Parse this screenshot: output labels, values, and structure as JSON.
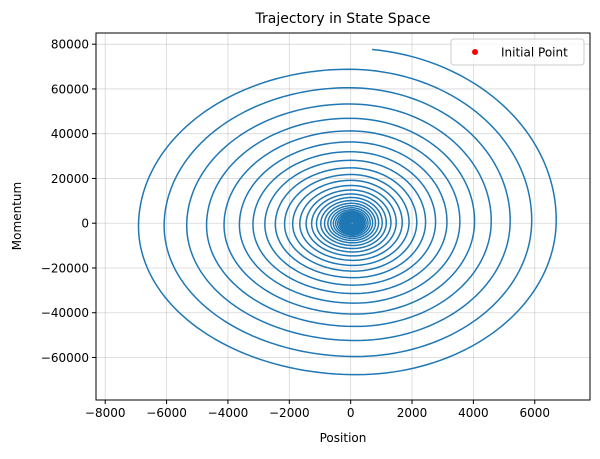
{
  "chart_data": {
    "type": "line",
    "title": "Trajectory in State Space",
    "xlabel": "Position",
    "ylabel": "Momentum",
    "xlim": [
      -8300,
      7800
    ],
    "ylim": [
      -79000,
      85000
    ],
    "xticks": [
      -8000,
      -6000,
      -4000,
      -2000,
      0,
      2000,
      4000,
      6000
    ],
    "xtick_labels": [
      "−8000",
      "−6000",
      "−4000",
      "−2000",
      "0",
      "2000",
      "4000",
      "6000"
    ],
    "yticks": [
      -60000,
      -40000,
      -20000,
      0,
      20000,
      40000,
      60000,
      80000
    ],
    "ytick_labels": [
      "−60000",
      "−40000",
      "−20000",
      "0",
      "20000",
      "40000",
      "60000",
      "80000"
    ],
    "grid": true,
    "legend": {
      "location": "top-right",
      "entries": [
        "Initial Point"
      ]
    },
    "series": [
      {
        "kind": "spiral-line",
        "color": "#1f77b4",
        "start": {
          "x": 700,
          "y": 78000
        },
        "center": {
          "x": 50,
          "y": 0
        },
        "extremes_outer_turn": {
          "x_min": -7600,
          "x_max": 6900,
          "y_min": -72000,
          "y_max": 78000
        },
        "turns": 40,
        "decay_ratio_per_turn": 0.88
      },
      {
        "kind": "scatter",
        "name": "Initial Point",
        "color": "#ff0000",
        "points": []
      }
    ]
  }
}
